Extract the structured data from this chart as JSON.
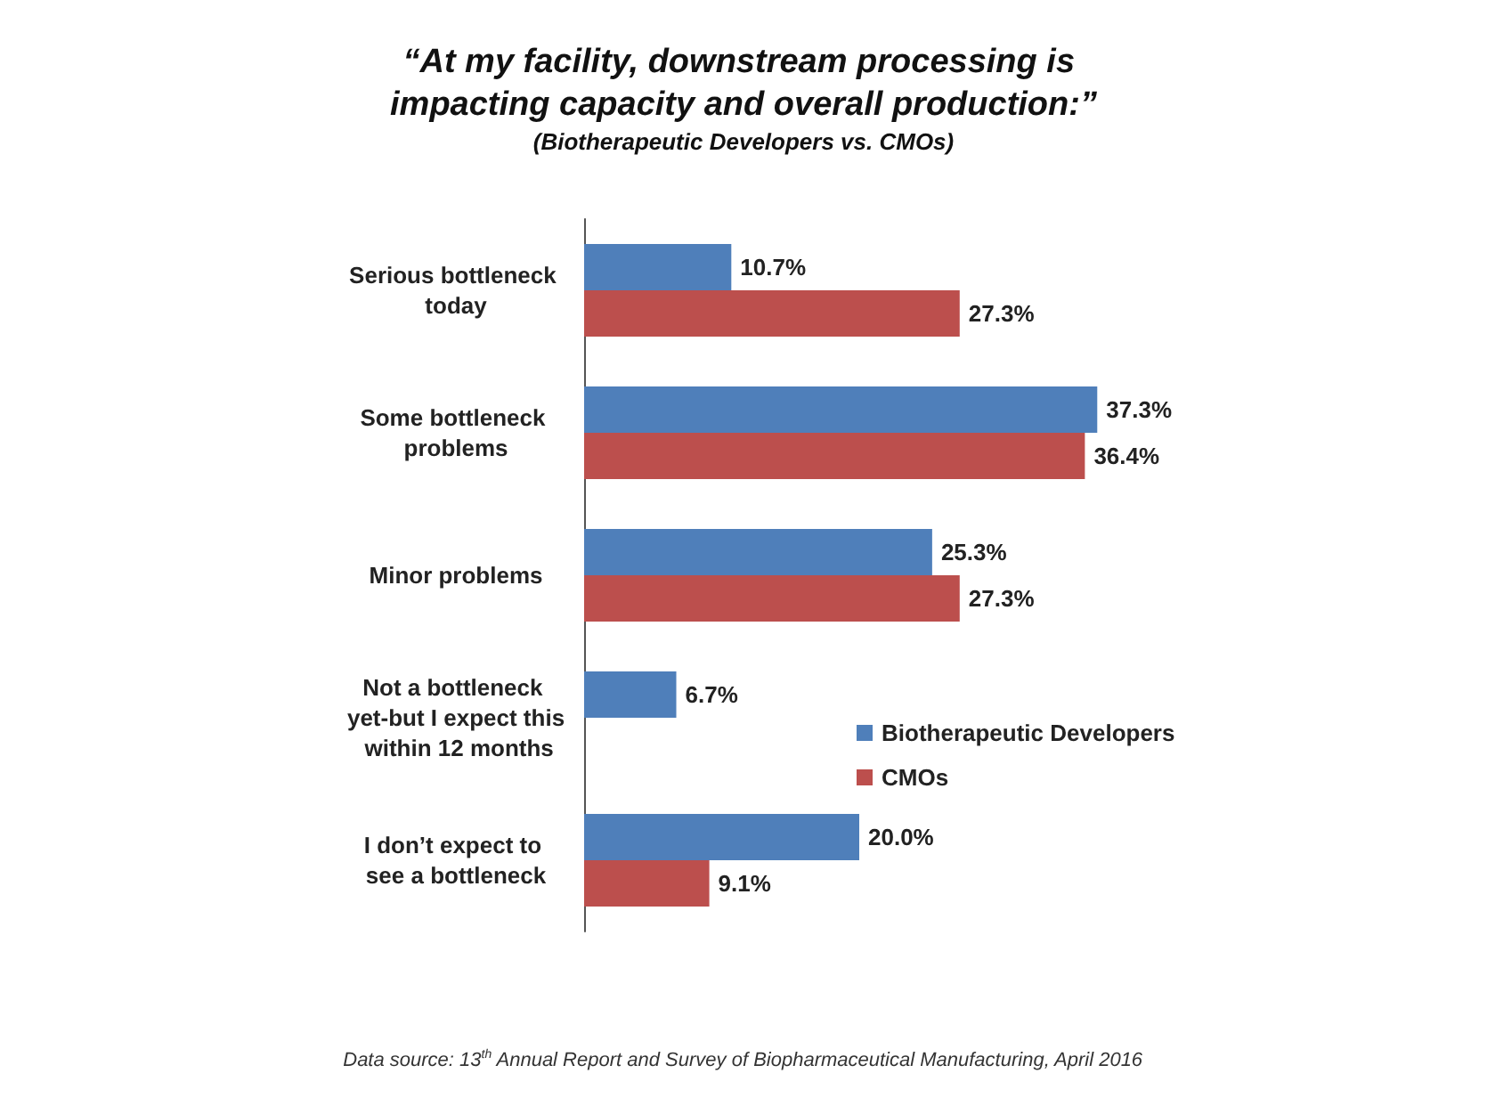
{
  "chart_data": {
    "type": "bar",
    "orientation": "horizontal",
    "tick_labels": "y",
    "title": "“At my facility, downstream processing is impacting capacity and overall production:”",
    "subtitle": "(Biotherapeutic Developers vs. CMOs)",
    "categories": [
      "Serious bottleneck today",
      "Some bottleneck problems",
      "Minor problems",
      "Not a bottleneck yet-but I expect this within 12 months",
      "I don’t expect to see a bottleneck"
    ],
    "series": [
      {
        "name": "Biotherapeutic Developers",
        "color": "#4f7fba",
        "values": [
          10.7,
          37.3,
          25.3,
          6.7,
          20.0
        ],
        "value_labels": [
          "10.7%",
          "37.3%",
          "25.3%",
          "6.7%",
          "20.0%"
        ]
      },
      {
        "name": "CMOs",
        "color": "#bc4f4d",
        "values": [
          27.3,
          36.4,
          27.3,
          null,
          9.1
        ],
        "value_labels": [
          "27.3%",
          "36.4%",
          "27.3%",
          null,
          "9.1%"
        ]
      }
    ],
    "legend": "right",
    "grid": false,
    "annotations": [
      "Data source: 13$^{th}$ Annual Report and Survey of Biopharmaceutical Manufacturing, April 2016"
    ]
  }
}
